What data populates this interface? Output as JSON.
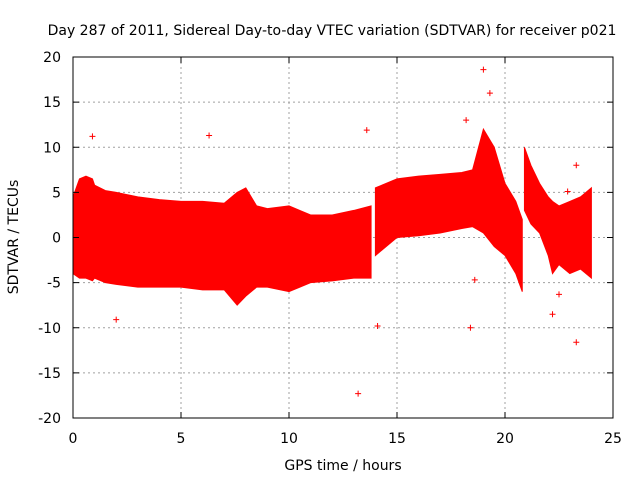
{
  "chart_data": {
    "type": "scatter",
    "title": "Day 287 of 2011, Sidereal Day-to-day VTEC variation (SDTVAR) for receiver p021",
    "xlabel": "GPS time / hours",
    "ylabel": "SDTVAR / TECUs",
    "xlim": [
      0,
      25
    ],
    "ylim": [
      -20,
      20
    ],
    "xticks": [
      0,
      5,
      10,
      15,
      20,
      25
    ],
    "yticks": [
      -20,
      -15,
      -10,
      -5,
      0,
      5,
      10,
      15,
      20
    ],
    "grid": true,
    "color": "#ff0000",
    "band_envelope": {
      "x": [
        0.0,
        0.3,
        0.6,
        0.9,
        1.0,
        1.5,
        2.0,
        3.0,
        4.0,
        5.0,
        6.0,
        7.0,
        7.6,
        8.0,
        8.5,
        9.0,
        10.0,
        10.5,
        11.0,
        12.0,
        13.0,
        13.8
      ],
      "upper": [
        4.5,
        6.5,
        6.8,
        6.5,
        5.8,
        5.2,
        5.0,
        4.5,
        4.2,
        4.0,
        4.0,
        3.8,
        5.0,
        5.5,
        3.5,
        3.2,
        3.5,
        3.0,
        2.5,
        2.5,
        3.0,
        3.5
      ],
      "lower": [
        -4.0,
        -4.5,
        -4.5,
        -4.8,
        -4.5,
        -5.0,
        -5.2,
        -5.5,
        -5.5,
        -5.5,
        -5.8,
        -5.8,
        -7.5,
        -6.5,
        -5.5,
        -5.5,
        -6.0,
        -5.5,
        -5.0,
        -4.8,
        -4.5,
        -4.5
      ]
    },
    "band_envelope_2": {
      "x": [
        14.0,
        15.0,
        16.0,
        17.0,
        18.0,
        18.5,
        19.0,
        19.5,
        20.0,
        20.5,
        20.8
      ],
      "upper": [
        5.5,
        6.5,
        6.8,
        7.0,
        7.2,
        7.5,
        12.0,
        10.0,
        6.0,
        4.0,
        2.0
      ],
      "lower": [
        -2.0,
        0.0,
        0.2,
        0.5,
        1.0,
        1.2,
        0.5,
        -1.0,
        -2.0,
        -4.0,
        -6.0
      ]
    },
    "band_envelope_3": {
      "x": [
        20.9,
        21.2,
        21.6,
        22.0,
        22.2,
        22.5,
        23.0,
        23.5,
        24.0
      ],
      "upper": [
        10.0,
        8.0,
        6.0,
        4.5,
        4.0,
        3.5,
        4.0,
        4.5,
        5.5
      ],
      "lower": [
        3.0,
        1.5,
        0.5,
        -2.0,
        -4.0,
        -3.0,
        -4.0,
        -3.5,
        -4.5
      ]
    },
    "outliers": [
      {
        "x": 0.9,
        "y": 11.2
      },
      {
        "x": 2.0,
        "y": -9.1
      },
      {
        "x": 6.3,
        "y": 11.3
      },
      {
        "x": 13.2,
        "y": -17.3
      },
      {
        "x": 13.6,
        "y": 11.9
      },
      {
        "x": 14.1,
        "y": -9.8
      },
      {
        "x": 18.2,
        "y": 13.0
      },
      {
        "x": 18.4,
        "y": -10.0
      },
      {
        "x": 18.6,
        "y": -4.7
      },
      {
        "x": 19.0,
        "y": 18.6
      },
      {
        "x": 19.3,
        "y": 16.0
      },
      {
        "x": 22.2,
        "y": -8.5
      },
      {
        "x": 23.3,
        "y": 8.0
      },
      {
        "x": 23.3,
        "y": -11.6
      },
      {
        "x": 22.5,
        "y": -6.3
      },
      {
        "x": 21.5,
        "y": 4.5
      },
      {
        "x": 22.9,
        "y": 5.1
      }
    ]
  }
}
